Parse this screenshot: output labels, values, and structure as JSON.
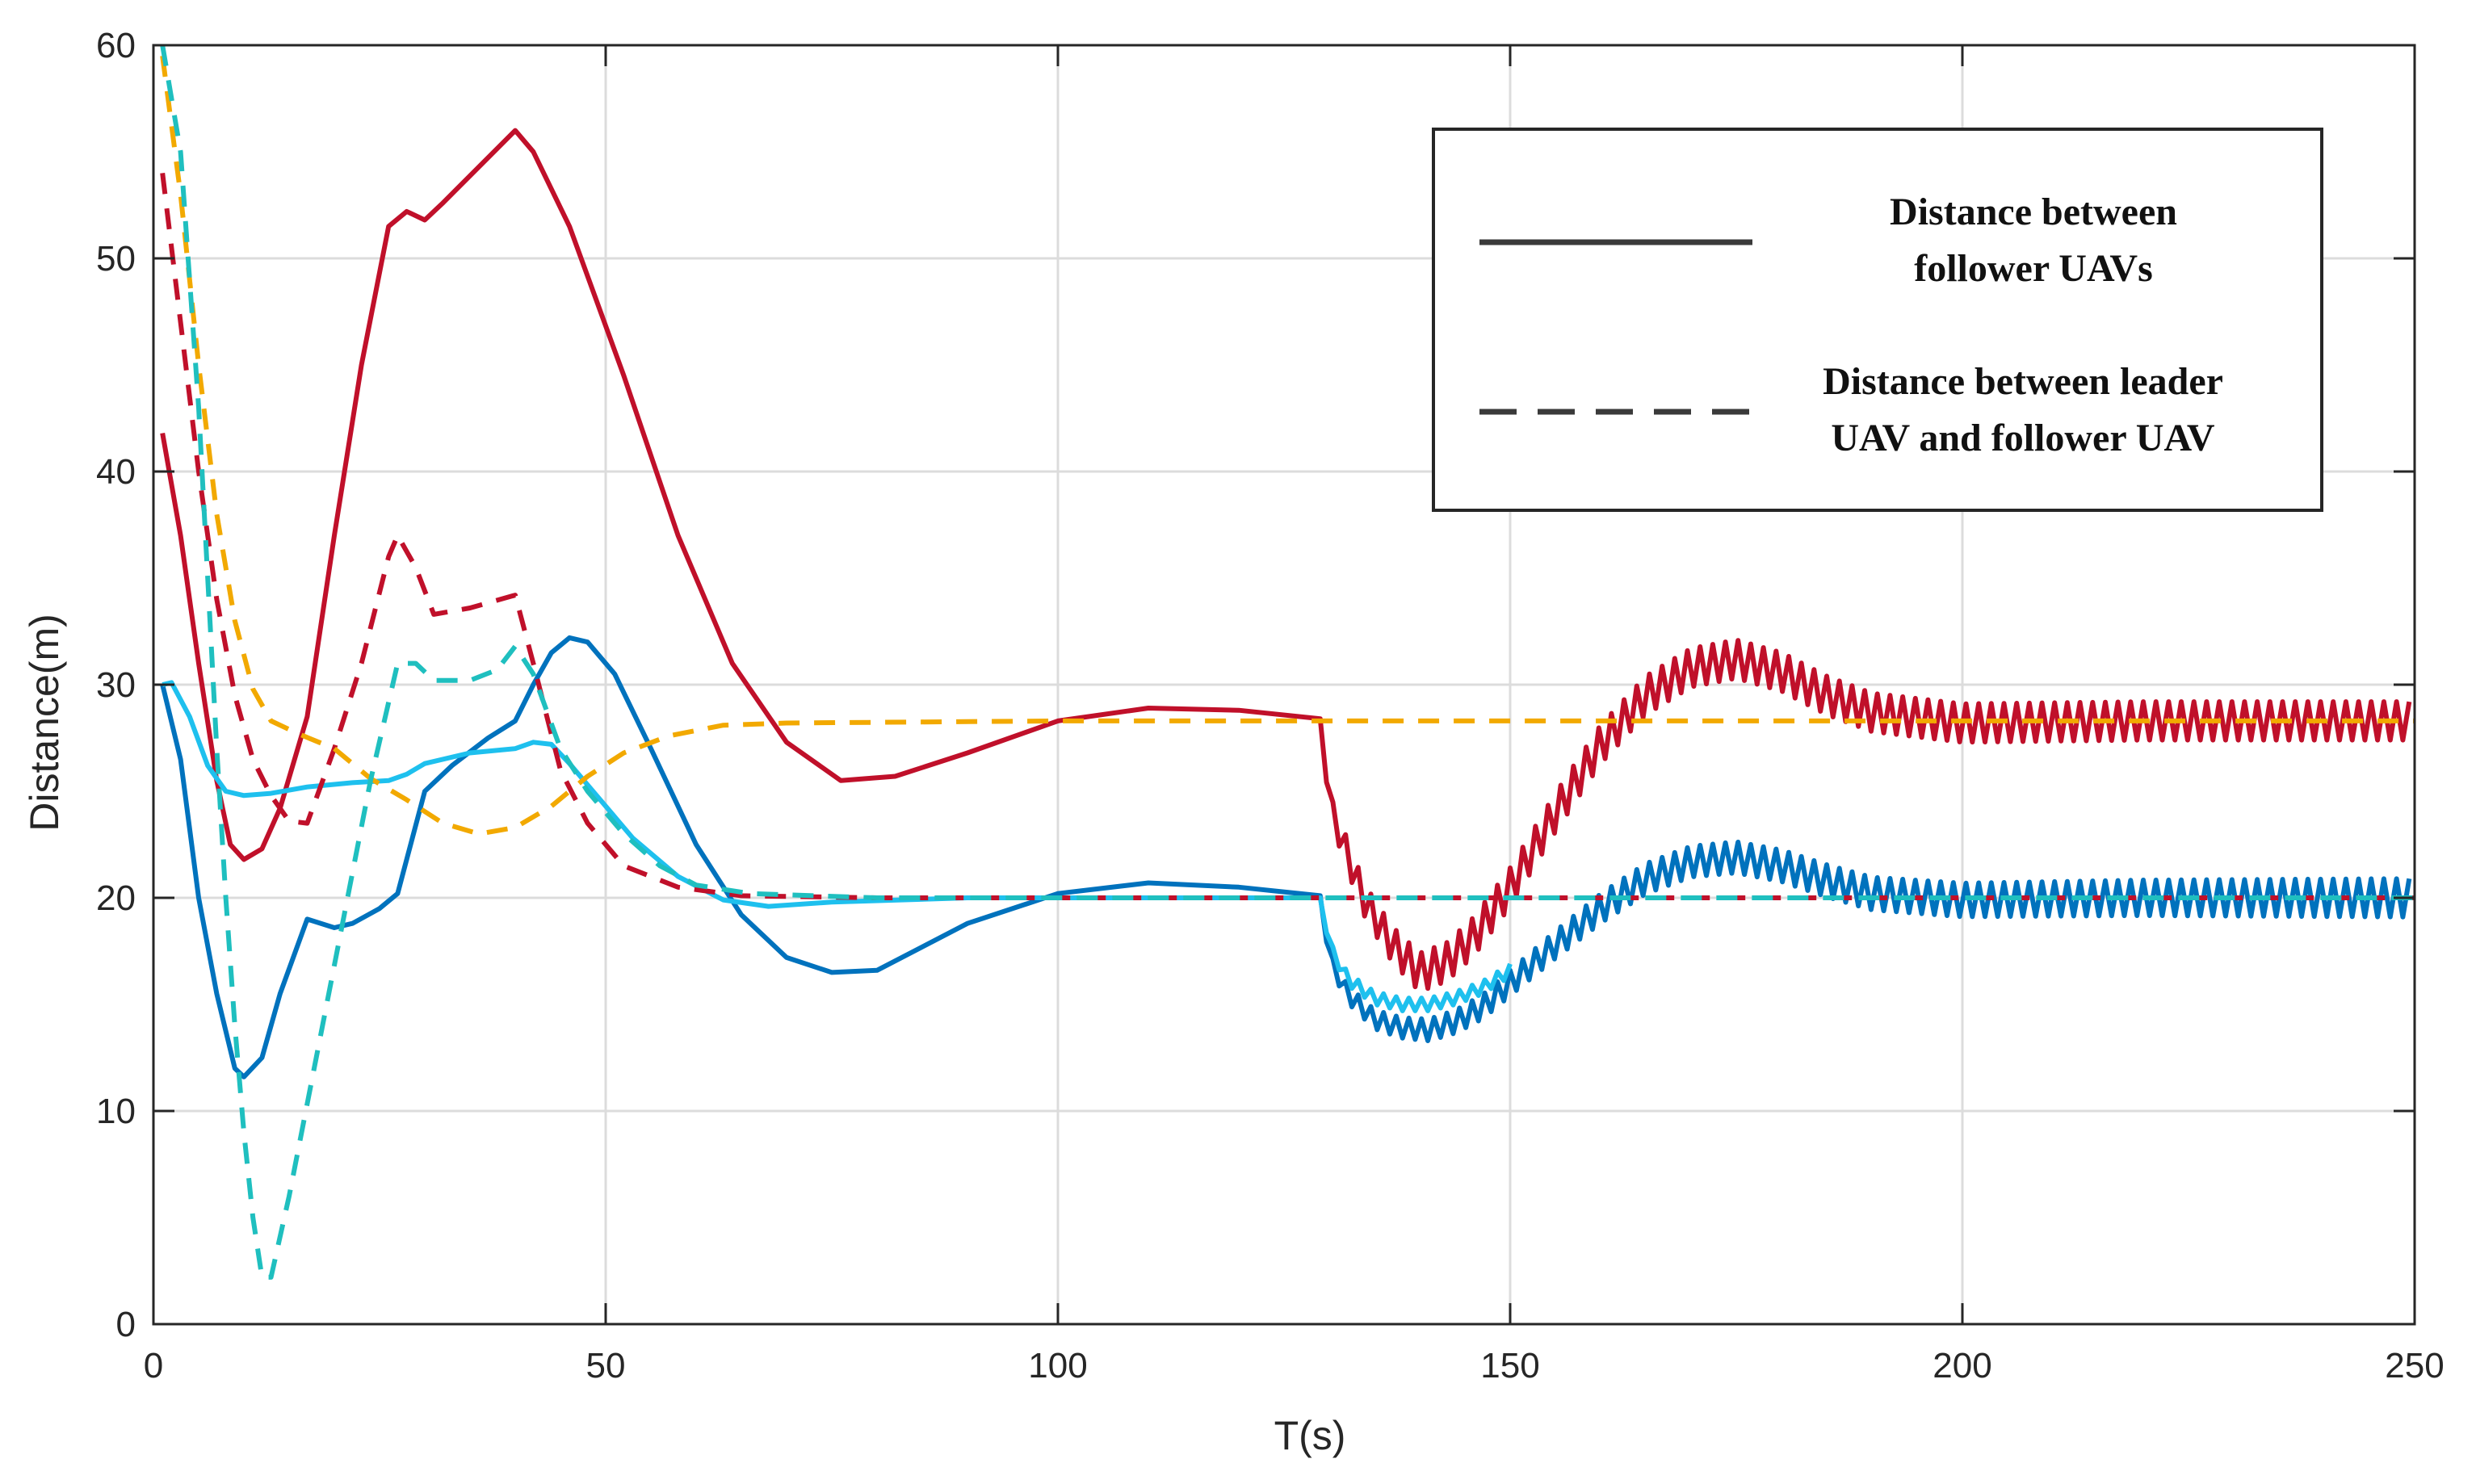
{
  "chart_data": {
    "type": "line",
    "title": "",
    "xlabel": "T(s)",
    "ylabel": "Distance(m)",
    "xlim": [
      0,
      250
    ],
    "ylim": [
      0,
      60
    ],
    "xticks": [
      "0",
      "50",
      "100",
      "150",
      "200",
      "250"
    ],
    "yticks": [
      "0",
      "10",
      "20",
      "30",
      "40",
      "50",
      "60"
    ],
    "xtick_values": [
      0,
      50,
      100,
      150,
      200,
      250
    ],
    "ytick_values": [
      0,
      10,
      20,
      30,
      40,
      50,
      60
    ],
    "grid": true,
    "legend": {
      "placement": "top-right",
      "entries": [
        {
          "style": "solid",
          "line1": "Distance between",
          "line2": "follower UAVs"
        },
        {
          "style": "dashed",
          "line1": "Distance between leader",
          "line2": "UAV and follower UAV"
        }
      ]
    },
    "series": [
      {
        "name": "follower-distance-red",
        "style": "solid",
        "color": "#c0102a",
        "points": [
          [
            1,
            41.8
          ],
          [
            3,
            37
          ],
          [
            5,
            31
          ],
          [
            7,
            25.5
          ],
          [
            8.5,
            22.5
          ],
          [
            10,
            21.8
          ],
          [
            12,
            22.3
          ],
          [
            14,
            24.2
          ],
          [
            17,
            28.5
          ],
          [
            20,
            37
          ],
          [
            23,
            45
          ],
          [
            26,
            51.5
          ],
          [
            28,
            52.2
          ],
          [
            30,
            51.8
          ],
          [
            32,
            52.6
          ],
          [
            36,
            54.3
          ],
          [
            40,
            56
          ],
          [
            42,
            55
          ],
          [
            46,
            51.5
          ],
          [
            52,
            44.5
          ],
          [
            58,
            37
          ],
          [
            64,
            31
          ],
          [
            70,
            27.3
          ],
          [
            76,
            25.5
          ],
          [
            82,
            25.7
          ],
          [
            90,
            26.8
          ],
          [
            100,
            28.3
          ],
          [
            110,
            28.9
          ],
          [
            120,
            28.8
          ],
          [
            129,
            28.4
          ]
        ],
        "osc": {
          "t0": 129,
          "t1": 250,
          "period": 1.4,
          "env": [
            [
              129,
              28.4
            ],
            [
              130,
              24.5
            ],
            [
              132,
              22
            ],
            [
              134,
              19.8
            ],
            [
              137,
              17.8
            ],
            [
              140,
              16.5
            ],
            [
              143,
              17
            ],
            [
              146,
              18.2
            ],
            [
              150,
              20.5
            ],
            [
              155,
              24
            ],
            [
              160,
              27.2
            ],
            [
              165,
              29.5
            ],
            [
              170,
              30.8
            ],
            [
              175,
              31.2
            ],
            [
              180,
              30.6
            ],
            [
              185,
              29.5
            ],
            [
              190,
              28.7
            ],
            [
              200,
              28.2
            ],
            [
              220,
              28.3
            ],
            [
              250,
              28.3
            ]
          ],
          "amp": [
            [
              129,
              0
            ],
            [
              131,
              0.7
            ],
            [
              140,
              0.9
            ],
            [
              250,
              0.9
            ]
          ]
        }
      },
      {
        "name": "follower-distance-blue",
        "style": "solid",
        "color": "#0072bd",
        "points": [
          [
            1,
            30
          ],
          [
            3,
            26.5
          ],
          [
            5,
            20
          ],
          [
            7,
            15.5
          ],
          [
            9,
            12
          ],
          [
            10,
            11.6
          ],
          [
            12,
            12.5
          ],
          [
            14,
            15.5
          ],
          [
            17,
            19
          ],
          [
            20,
            18.6
          ],
          [
            22,
            18.8
          ],
          [
            25,
            19.5
          ],
          [
            27,
            20.2
          ],
          [
            30,
            25
          ],
          [
            33,
            26.2
          ],
          [
            37,
            27.5
          ],
          [
            40,
            28.3
          ],
          [
            42,
            30
          ],
          [
            44,
            31.5
          ],
          [
            46,
            32.2
          ],
          [
            48,
            32
          ],
          [
            51,
            30.5
          ],
          [
            55,
            27
          ],
          [
            60,
            22.5
          ],
          [
            65,
            19.2
          ],
          [
            70,
            17.2
          ],
          [
            75,
            16.5
          ],
          [
            80,
            16.6
          ],
          [
            90,
            18.8
          ],
          [
            100,
            20.2
          ],
          [
            110,
            20.7
          ],
          [
            120,
            20.5
          ],
          [
            129,
            20.1
          ]
        ],
        "osc": {
          "t0": 129,
          "t1": 250,
          "period": 1.4,
          "env": [
            [
              129,
              20.1
            ],
            [
              130,
              17.2
            ],
            [
              132,
              15.5
            ],
            [
              135,
              14.3
            ],
            [
              138,
              13.9
            ],
            [
              141,
              13.8
            ],
            [
              144,
              14.2
            ],
            [
              147,
              14.9
            ],
            [
              150,
              16
            ],
            [
              155,
              17.8
            ],
            [
              160,
              19.5
            ],
            [
              165,
              20.9
            ],
            [
              170,
              21.7
            ],
            [
              175,
              21.9
            ],
            [
              180,
              21.5
            ],
            [
              185,
              20.8
            ],
            [
              190,
              20.2
            ],
            [
              200,
              19.9
            ],
            [
              220,
              20
            ],
            [
              250,
              20
            ]
          ],
          "amp": [
            [
              129,
              0
            ],
            [
              131,
              0.4
            ],
            [
              140,
              0.5
            ],
            [
              162,
              0.7
            ],
            [
              250,
              0.9
            ]
          ]
        }
      },
      {
        "name": "follower-distance-lightblue",
        "style": "solid",
        "color": "#1ec0ee",
        "points": [
          [
            1,
            30
          ],
          [
            2,
            30.1
          ],
          [
            4,
            28.5
          ],
          [
            6,
            26.2
          ],
          [
            8,
            25
          ],
          [
            10,
            24.8
          ],
          [
            13,
            24.9
          ],
          [
            17,
            25.2
          ],
          [
            22,
            25.4
          ],
          [
            26,
            25.5
          ],
          [
            28,
            25.8
          ],
          [
            30,
            26.3
          ],
          [
            35,
            26.8
          ],
          [
            40,
            27
          ],
          [
            42,
            27.3
          ],
          [
            44,
            27.2
          ],
          [
            46,
            26.3
          ],
          [
            49,
            24.8
          ],
          [
            53,
            22.8
          ],
          [
            58,
            21
          ],
          [
            63,
            19.9
          ],
          [
            68,
            19.6
          ],
          [
            75,
            19.8
          ],
          [
            90,
            20
          ],
          [
            110,
            20
          ],
          [
            129,
            20
          ]
        ],
        "osc": {
          "t0": 129,
          "t1": 150,
          "period": 1.4,
          "env": [
            [
              129,
              20
            ],
            [
              130,
              17.8
            ],
            [
              132,
              16.2
            ],
            [
              135,
              15.3
            ],
            [
              138,
              15
            ],
            [
              141,
              15
            ],
            [
              144,
              15.3
            ],
            [
              147,
              15.8
            ],
            [
              150,
              16.6
            ]
          ],
          "amp": [
            [
              129,
              0
            ],
            [
              131,
              0.3
            ],
            [
              150,
              0.3
            ]
          ]
        }
      },
      {
        "name": "leader-distance-red",
        "style": "dashed",
        "color": "#c0102a",
        "points": [
          [
            1,
            54
          ],
          [
            3,
            47
          ],
          [
            5,
            40
          ],
          [
            7,
            34
          ],
          [
            9,
            29.5
          ],
          [
            11,
            26.5
          ],
          [
            13,
            24.8
          ],
          [
            15,
            23.6
          ],
          [
            17,
            23.5
          ],
          [
            20,
            27
          ],
          [
            23,
            31
          ],
          [
            26,
            36
          ],
          [
            27,
            37
          ],
          [
            29,
            35.5
          ],
          [
            31,
            33.3
          ],
          [
            35,
            33.6
          ],
          [
            40,
            34.2
          ],
          [
            42,
            31
          ],
          [
            45,
            26
          ],
          [
            48,
            23.5
          ],
          [
            52,
            21.5
          ],
          [
            58,
            20.5
          ],
          [
            65,
            20.1
          ],
          [
            80,
            20
          ],
          [
            250,
            20
          ]
        ]
      },
      {
        "name": "leader-distance-orange",
        "style": "dashed",
        "color": "#f2a900",
        "points": [
          [
            1,
            59.5
          ],
          [
            3,
            53
          ],
          [
            5,
            45
          ],
          [
            7,
            38
          ],
          [
            9,
            33
          ],
          [
            11,
            29.8
          ],
          [
            13,
            28.3
          ],
          [
            16,
            27.7
          ],
          [
            20,
            27
          ],
          [
            24,
            25.6
          ],
          [
            28,
            24.6
          ],
          [
            32,
            23.5
          ],
          [
            36,
            23
          ],
          [
            40,
            23.3
          ],
          [
            44,
            24.3
          ],
          [
            48,
            25.7
          ],
          [
            52,
            26.8
          ],
          [
            57,
            27.6
          ],
          [
            63,
            28.1
          ],
          [
            70,
            28.2
          ],
          [
            100,
            28.3
          ],
          [
            250,
            28.3
          ]
        ]
      },
      {
        "name": "leader-distance-teal",
        "style": "dashed",
        "color": "#1fbfbf",
        "points": [
          [
            1,
            60
          ],
          [
            3,
            55
          ],
          [
            5,
            43
          ],
          [
            6,
            35
          ],
          [
            7,
            27
          ],
          [
            8,
            20
          ],
          [
            9,
            14
          ],
          [
            10,
            9
          ],
          [
            11,
            5
          ],
          [
            12,
            2.2
          ],
          [
            13,
            2.2
          ],
          [
            15,
            6
          ],
          [
            18,
            12.5
          ],
          [
            21,
            19
          ],
          [
            24,
            25.5
          ],
          [
            27,
            31
          ],
          [
            29,
            31
          ],
          [
            31,
            30.2
          ],
          [
            35,
            30.2
          ],
          [
            38,
            30.7
          ],
          [
            40,
            31.8
          ],
          [
            42,
            30.5
          ],
          [
            45,
            27
          ],
          [
            48,
            25
          ],
          [
            52,
            23
          ],
          [
            56,
            21.5
          ],
          [
            60,
            20.6
          ],
          [
            66,
            20.2
          ],
          [
            80,
            20
          ],
          [
            250,
            20
          ]
        ]
      }
    ]
  }
}
